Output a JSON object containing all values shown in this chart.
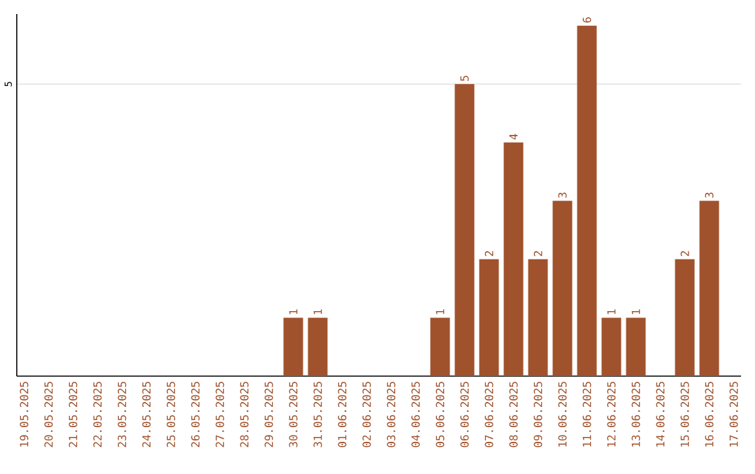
{
  "chart_data": {
    "type": "bar",
    "categories": [
      "19.05.2025",
      "20.05.2025",
      "21.05.2025",
      "22.05.2025",
      "23.05.2025",
      "24.05.2025",
      "25.05.2025",
      "26.05.2025",
      "27.05.2025",
      "28.05.2025",
      "29.05.2025",
      "30.05.2025",
      "31.05.2025",
      "01.06.2025",
      "02.06.2025",
      "03.06.2025",
      "04.06.2025",
      "05.06.2025",
      "06.06.2025",
      "07.06.2025",
      "08.06.2025",
      "09.06.2025",
      "10.06.2025",
      "11.06.2025",
      "12.06.2025",
      "13.06.2025",
      "14.06.2025",
      "15.06.2025",
      "16.06.2025",
      "17.06.2025"
    ],
    "values": [
      0,
      0,
      0,
      0,
      0,
      0,
      0,
      0,
      0,
      0,
      0,
      1,
      1,
      0,
      0,
      0,
      0,
      1,
      5,
      2,
      4,
      2,
      3,
      6,
      1,
      1,
      0,
      2,
      3,
      0
    ],
    "value_labels": [
      null,
      null,
      null,
      null,
      null,
      null,
      null,
      null,
      null,
      null,
      null,
      "1",
      "1",
      null,
      null,
      null,
      null,
      "1",
      "5",
      "2",
      "4",
      "2",
      "3",
      "6",
      "1",
      "1",
      null,
      "2",
      "3",
      null
    ],
    "color": "#a0522d",
    "ylim": [
      0,
      6.2
    ],
    "yticks": [
      5
    ],
    "grid": "y"
  }
}
